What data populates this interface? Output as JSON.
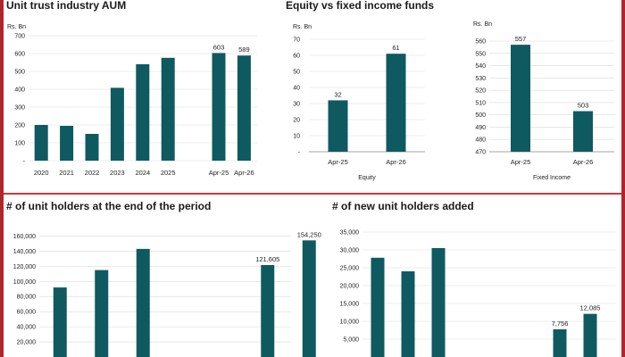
{
  "titles": {
    "aum": "Unit trust industry AUM",
    "eq_vs_fi": "Equity vs fixed income funds",
    "holders": "# of unit holders at the end of the period",
    "new_holders": "# of new unit holders added"
  },
  "colors": {
    "bar": "#0e5a60",
    "frame": "#b0252b",
    "grid": "#d9d9d9",
    "axis_text": "#222222"
  },
  "chart_data": [
    {
      "id": "aum",
      "type": "bar",
      "title": "Unit trust industry AUM",
      "unit_label": "Rs. Bn",
      "categories": [
        "2020",
        "2021",
        "2022",
        "2023",
        "2024",
        "2025",
        "",
        "Apr-25",
        "Apr-26"
      ],
      "values": [
        200,
        195,
        150,
        408,
        540,
        576,
        null,
        603,
        589
      ],
      "data_labels": [
        "",
        "",
        "",
        "",
        "",
        "",
        "",
        "603",
        "589"
      ],
      "ylim": [
        0,
        700
      ],
      "yticks": [
        "-",
        "100",
        "200",
        "300",
        "400",
        "500",
        "600",
        "700"
      ],
      "grid": true
    },
    {
      "id": "equity",
      "type": "bar",
      "unit_label": "Rs. Bn",
      "xlabel": "Equity",
      "categories": [
        "Apr-25",
        "Apr-26"
      ],
      "values": [
        32,
        61
      ],
      "data_labels": [
        "32",
        "61"
      ],
      "ylim": [
        0,
        70
      ],
      "yticks": [
        "-",
        "10",
        "20",
        "30",
        "40",
        "50",
        "60",
        "70"
      ],
      "grid": true
    },
    {
      "id": "fixed_income",
      "type": "bar",
      "unit_label": "Rs. Bn",
      "xlabel": "Fixed Income",
      "categories": [
        "Apr-25",
        "Apr-26"
      ],
      "values": [
        557,
        503
      ],
      "data_labels": [
        "557",
        "503"
      ],
      "ylim": [
        470,
        560
      ],
      "yticks": [
        "470",
        "480",
        "490",
        "500",
        "510",
        "520",
        "530",
        "540",
        "550",
        "560"
      ],
      "grid": true
    },
    {
      "id": "holders",
      "type": "bar",
      "title": "# of unit holders at the end of the period",
      "categories": [
        "",
        "",
        "",
        "",
        "",
        "",
        ""
      ],
      "values": [
        92000,
        115000,
        143000,
        null,
        null,
        121605,
        154250
      ],
      "data_labels": [
        "",
        "",
        "",
        "",
        "",
        "121,605",
        "154,250"
      ],
      "ylim": [
        0,
        170000
      ],
      "yticks": [
        "20,000",
        "40,000",
        "60,000",
        "80,000",
        "100,000",
        "120,000",
        "140,000",
        "160,000"
      ],
      "grid": true
    },
    {
      "id": "new_holders",
      "type": "bar",
      "title": "# of new unit holders added",
      "categories": [
        "",
        "",
        "",
        "",
        "",
        "",
        "",
        ""
      ],
      "values": [
        27800,
        24000,
        30500,
        null,
        null,
        null,
        7756,
        12085
      ],
      "data_labels": [
        "",
        "",
        "",
        "",
        "",
        "",
        "7,756",
        "12,085"
      ],
      "ylim": [
        0,
        36000
      ],
      "yticks": [
        "5,000",
        "10,000",
        "15,000",
        "20,000",
        "25,000",
        "30,000",
        "35,000"
      ],
      "grid": true
    }
  ]
}
